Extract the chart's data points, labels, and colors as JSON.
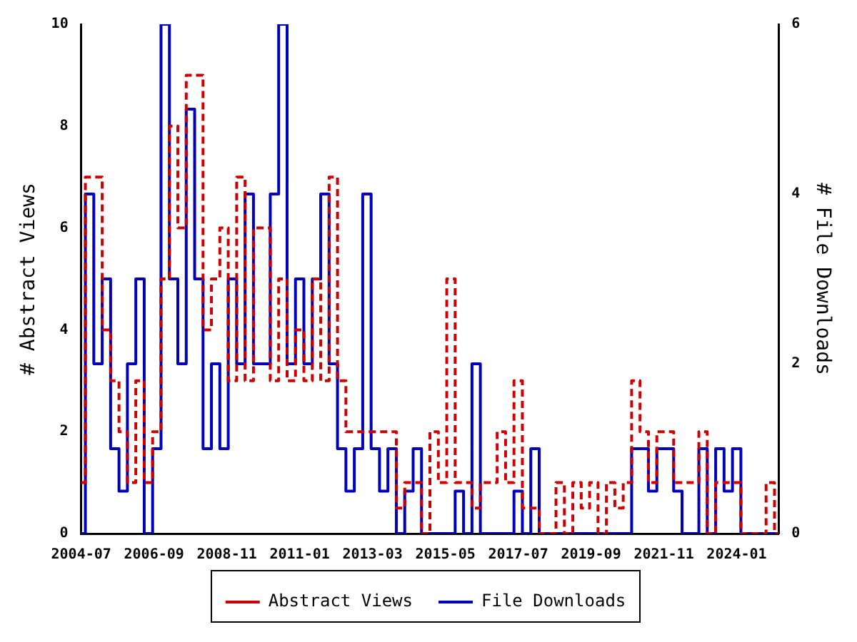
{
  "chart_data": {
    "type": "step",
    "x": [
      "2004-07",
      "2004-10",
      "2005-01",
      "2005-04",
      "2005-07",
      "2005-10",
      "2006-01",
      "2006-04",
      "2006-07",
      "2006-10",
      "2007-01",
      "2007-04",
      "2007-07",
      "2007-10",
      "2008-01",
      "2008-04",
      "2008-07",
      "2008-10",
      "2009-01",
      "2009-04",
      "2009-07",
      "2009-10",
      "2010-01",
      "2010-04",
      "2010-07",
      "2010-10",
      "2011-01",
      "2011-04",
      "2011-07",
      "2011-10",
      "2012-01",
      "2012-04",
      "2012-07",
      "2012-10",
      "2013-01",
      "2013-04",
      "2013-07",
      "2013-10",
      "2014-01",
      "2014-04",
      "2014-07",
      "2014-10",
      "2015-01",
      "2015-04",
      "2015-07",
      "2015-10",
      "2016-01",
      "2016-04",
      "2016-07",
      "2016-10",
      "2017-01",
      "2017-04",
      "2017-07",
      "2017-10",
      "2018-01",
      "2018-04",
      "2018-07",
      "2018-10",
      "2019-01",
      "2019-04",
      "2019-07",
      "2019-10",
      "2020-01",
      "2020-04",
      "2020-07",
      "2020-10",
      "2021-01",
      "2021-04",
      "2021-07",
      "2021-10",
      "2022-01",
      "2022-04",
      "2022-07",
      "2022-10",
      "2023-01",
      "2023-04",
      "2023-07",
      "2023-10",
      "2024-01",
      "2024-04",
      "2024-07",
      "2024-10",
      "2025-01",
      "2025-04"
    ],
    "series": [
      {
        "name": "Abstract Views",
        "color": "#cc0000",
        "line_style": "dashed",
        "values": [
          1,
          7,
          7,
          4,
          3,
          2,
          1,
          3,
          1,
          2,
          5,
          8,
          6,
          9,
          9,
          4,
          5,
          6,
          3,
          7,
          3,
          6,
          6,
          3,
          5,
          3,
          4,
          3,
          5,
          3,
          7,
          3,
          2,
          2,
          2,
          2,
          2,
          2,
          0.5,
          1,
          1,
          0,
          2,
          1,
          5,
          1,
          1,
          0.5,
          1,
          1,
          2,
          1,
          3,
          0.5,
          0.5,
          0,
          0,
          1,
          0,
          1,
          0.5,
          1,
          0,
          1,
          0.5,
          1,
          3,
          2,
          1,
          2,
          2,
          1,
          1,
          1,
          2,
          0,
          1,
          1,
          1,
          0,
          0,
          0,
          1,
          0
        ]
      },
      {
        "name": "File Downloads",
        "color": "#0000bb",
        "line_style": "solid",
        "axis": "y2",
        "values": [
          0,
          4,
          2,
          3,
          1,
          0.5,
          2,
          3,
          0,
          1,
          6,
          3,
          2,
          5,
          3,
          1,
          2,
          1,
          3,
          2,
          4,
          2,
          2,
          4,
          6,
          2,
          3,
          2,
          3,
          4,
          2,
          1,
          0.5,
          1,
          4,
          1,
          0.5,
          1,
          0,
          0.5,
          1,
          0,
          0,
          0,
          0,
          0.5,
          0,
          2,
          0,
          0,
          0,
          0,
          0.5,
          0,
          1,
          0,
          0,
          0,
          0,
          0,
          0,
          0,
          0,
          0,
          0,
          0,
          1,
          1,
          0.5,
          1,
          1,
          0.5,
          0,
          0,
          1,
          0,
          1,
          0.5,
          1,
          0,
          0,
          0,
          0,
          0
        ]
      }
    ],
    "xlim": [
      "2004-07",
      "2025-04"
    ],
    "xticks": [
      "2004-07",
      "2006-09",
      "2008-11",
      "2011-01",
      "2013-03",
      "2015-05",
      "2017-07",
      "2019-09",
      "2021-11",
      "2024-01"
    ],
    "ylim": [
      0,
      10
    ],
    "yticks": [
      0,
      2,
      4,
      6,
      8,
      10
    ],
    "y2lim": [
      0,
      6
    ],
    "y2ticks": [
      0,
      2,
      4,
      6
    ],
    "ylabel": "# Abstract Views",
    "y2label": "# File Downloads",
    "legend": "bottom",
    "grid": false,
    "marker": "none"
  }
}
